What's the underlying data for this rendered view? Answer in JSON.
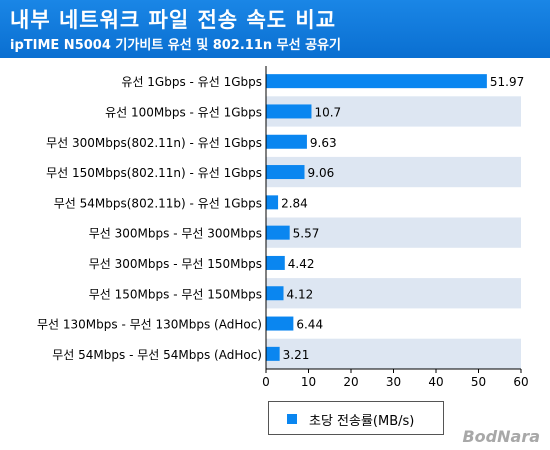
{
  "header": {
    "title": "내부 네트워크 파일 전송 속도 비교",
    "subtitle": "ipTIME N5004 기가비트 유선 및 802.11n 무선 공유기"
  },
  "watermark": "BodNara",
  "colors": {
    "header_bg": "#0a6fd1",
    "bar": "#0a86f0",
    "row_band": "#dde6f2"
  },
  "chart_data": {
    "type": "bar",
    "orientation": "horizontal",
    "title": "내부 네트워크 파일 전송 속도 비교",
    "subtitle": "ipTIME N5004 기가비트 유선 및 802.11n 무선 공유기",
    "categories": [
      "유선 1Gbps - 유선 1Gbps",
      "유선 100Mbps - 유선 1Gbps",
      "무선 300Mbps(802.11n) - 유선 1Gbps",
      "무선 150Mbps(802.11n) - 유선 1Gbps",
      "무선 54Mbps(802.11b) - 유선 1Gbps",
      "무선 300Mbps - 무선 300Mbps",
      "무선 300Mbps - 무선 150Mbps",
      "무선 150Mbps - 무선 150Mbps",
      "무선 130Mbps - 무선 130Mbps (AdHoc)",
      "무선 54Mbps - 무선 54Mbps (AdHoc)"
    ],
    "series": [
      {
        "name": "초당 전송률(MB/s)",
        "values": [
          51.97,
          10.7,
          9.63,
          9.06,
          2.84,
          5.57,
          4.42,
          4.12,
          6.44,
          3.21
        ],
        "labels": [
          "51.97",
          "10.7",
          "9.63",
          "9.06",
          "2.84",
          "5.57",
          "4.42",
          "4.12",
          "6.44",
          "3.21"
        ]
      }
    ],
    "xlim": [
      0,
      60
    ],
    "xticks": [
      0,
      10,
      20,
      30,
      40,
      50,
      60
    ],
    "xlabel": "",
    "ylabel": "",
    "grid": false,
    "legend_position": "bottom"
  }
}
